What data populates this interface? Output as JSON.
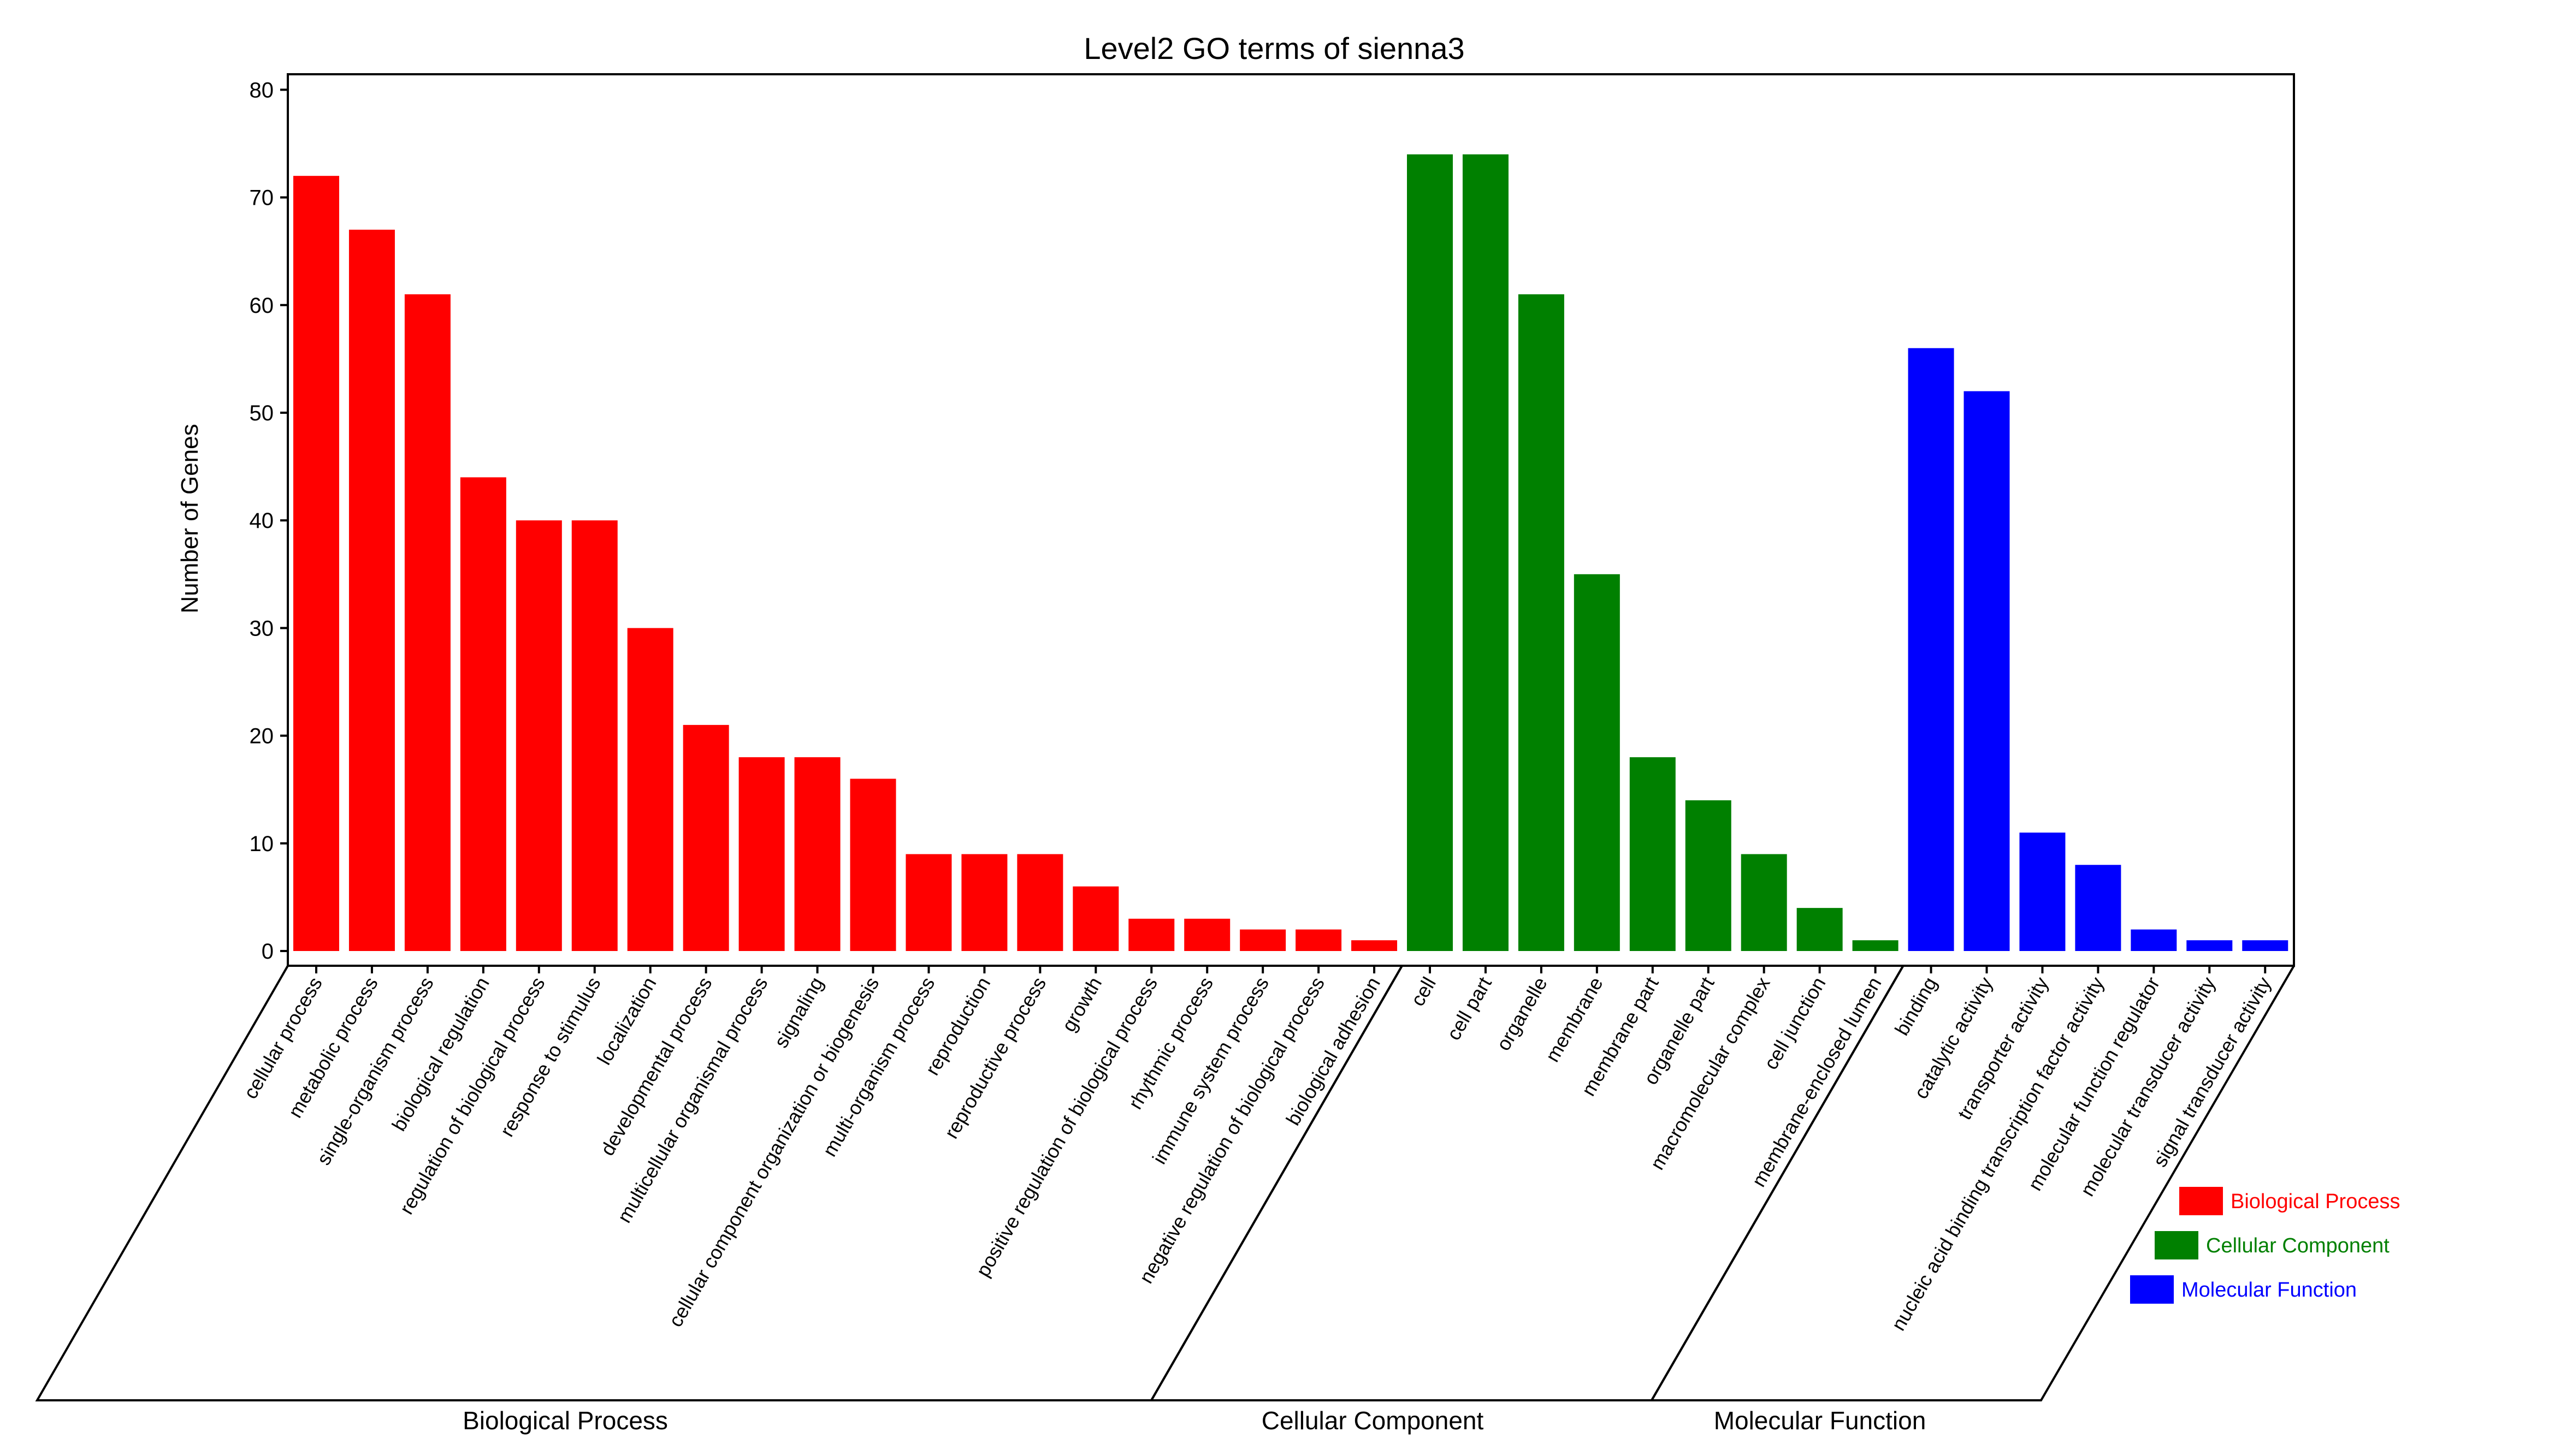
{
  "chart_data": {
    "type": "bar",
    "title": "Level2 GO terms of sienna3",
    "xlabel": "",
    "ylabel": "Number of Genes",
    "ylim": [
      0,
      80
    ],
    "yticks": [
      0,
      10,
      20,
      30,
      40,
      50,
      60,
      70,
      80
    ],
    "grid": false,
    "legend_position": "bottom-right",
    "series": [
      {
        "name": "Biological Process",
        "color": "#ff0000",
        "categories": [
          "cellular process",
          "metabolic process",
          "single-organism process",
          "biological regulation",
          "regulation of biological process",
          "response to stimulus",
          "localization",
          "developmental process",
          "multicellular organismal process",
          "signaling",
          "cellular component organization or biogenesis",
          "multi-organism process",
          "reproduction",
          "reproductive process",
          "growth",
          "positive regulation of biological process",
          "rhythmic process",
          "immune system process",
          "negative regulation of biological process",
          "biological adhesion"
        ],
        "values": [
          72,
          67,
          61,
          44,
          40,
          40,
          30,
          21,
          18,
          18,
          16,
          9,
          9,
          9,
          6,
          3,
          3,
          2,
          2,
          1
        ]
      },
      {
        "name": "Cellular Component",
        "color": "#008000",
        "categories": [
          "cell",
          "cell part",
          "organelle",
          "membrane",
          "membrane part",
          "organelle part",
          "macromolecular complex",
          "cell junction",
          "membrane-enclosed lumen"
        ],
        "values": [
          74,
          74,
          61,
          35,
          18,
          14,
          9,
          4,
          1
        ]
      },
      {
        "name": "Molecular Function",
        "color": "#0000ff",
        "categories": [
          "binding",
          "catalytic activity",
          "transporter activity",
          "nucleic acid binding transcription factor activity",
          "molecular function regulator",
          "molecular transducer activity",
          "signal transducer activity"
        ],
        "values": [
          56,
          52,
          11,
          8,
          2,
          1,
          1
        ]
      }
    ]
  }
}
